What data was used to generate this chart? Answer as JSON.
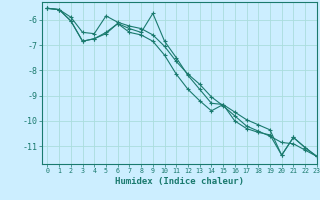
{
  "xlabel": "Humidex (Indice chaleur)",
  "bg_color": "#cceeff",
  "grid_color": "#aadddd",
  "line_color": "#1a7a6e",
  "xlim": [
    -0.5,
    23
  ],
  "ylim": [
    -11.7,
    -5.3
  ],
  "yticks": [
    -11,
    -10,
    -9,
    -8,
    -7,
    -6
  ],
  "xticks": [
    0,
    1,
    2,
    3,
    4,
    5,
    6,
    7,
    8,
    9,
    10,
    11,
    12,
    13,
    14,
    15,
    16,
    17,
    18,
    19,
    20,
    21,
    22,
    23
  ],
  "series1_x": [
    0,
    1,
    2,
    3,
    4,
    5,
    6,
    7,
    8,
    9,
    10,
    11,
    12,
    13,
    14,
    15,
    16,
    17,
    18,
    19,
    20,
    21,
    22,
    23
  ],
  "series1_y": [
    -5.55,
    -5.6,
    -5.9,
    -6.5,
    -6.55,
    -5.85,
    -6.1,
    -6.25,
    -6.35,
    -6.6,
    -7.05,
    -7.65,
    -8.15,
    -8.55,
    -9.05,
    -9.4,
    -9.8,
    -10.2,
    -10.4,
    -10.6,
    -10.85,
    -10.9,
    -11.15,
    -11.4
  ],
  "series2_x": [
    0,
    1,
    2,
    3,
    4,
    5,
    6,
    7,
    8,
    9,
    10,
    11,
    12,
    13,
    14,
    15,
    16,
    17,
    18,
    19,
    20,
    21,
    22,
    23
  ],
  "series2_y": [
    -5.55,
    -5.6,
    -6.05,
    -6.85,
    -6.75,
    -6.5,
    -6.15,
    -6.35,
    -6.5,
    -5.75,
    -6.85,
    -7.5,
    -8.2,
    -8.75,
    -9.3,
    -9.35,
    -9.65,
    -9.95,
    -10.15,
    -10.35,
    -11.35,
    -10.65,
    -11.05,
    -11.4
  ],
  "series3_x": [
    0,
    1,
    2,
    3,
    4,
    5,
    6,
    7,
    8,
    9,
    10,
    11,
    12,
    13,
    14,
    15,
    16,
    17,
    18,
    19,
    20,
    21,
    22,
    23
  ],
  "series3_y": [
    -5.55,
    -5.6,
    -6.05,
    -6.85,
    -6.75,
    -6.55,
    -6.15,
    -6.5,
    -6.6,
    -6.85,
    -7.4,
    -8.15,
    -8.75,
    -9.2,
    -9.6,
    -9.35,
    -10.0,
    -10.3,
    -10.45,
    -10.55,
    -11.35,
    -10.65,
    -11.05,
    -11.4
  ]
}
